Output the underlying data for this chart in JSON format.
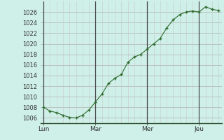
{
  "background_color": "#cff0e8",
  "plot_bg_color": "#cff0e8",
  "line_color": "#2d6a2d",
  "marker_color": "#2d6a2d",
  "grid_color_h": "#b0b0b0",
  "grid_color_v": "#c8c8c8",
  "vline_color": "#4a4a4a",
  "ylim": [
    1005.0,
    1028.0
  ],
  "yticks": [
    1006,
    1008,
    1010,
    1012,
    1014,
    1016,
    1018,
    1020,
    1022,
    1024,
    1026
  ],
  "xtick_labels": [
    "Lun",
    "Mar",
    "Mer",
    "Jeu"
  ],
  "xtick_positions": [
    0,
    8,
    16,
    24
  ],
  "vline_positions": [
    0,
    8,
    16,
    24
  ],
  "n_points": 28,
  "x": [
    0,
    1,
    2,
    3,
    4,
    5,
    6,
    7,
    8,
    9,
    10,
    11,
    12,
    13,
    14,
    15,
    16,
    17,
    18,
    19,
    20,
    21,
    22,
    23,
    24,
    25,
    26,
    27
  ],
  "y": [
    1008.0,
    1007.3,
    1007.0,
    1006.5,
    1006.1,
    1006.0,
    1006.5,
    1007.5,
    1009.0,
    1010.5,
    1012.5,
    1013.5,
    1014.2,
    1016.5,
    1017.5,
    1018.0,
    1019.0,
    1020.0,
    1021.0,
    1023.0,
    1024.5,
    1025.5,
    1026.0,
    1026.2,
    1026.0,
    1027.0,
    1026.5,
    1026.3
  ]
}
